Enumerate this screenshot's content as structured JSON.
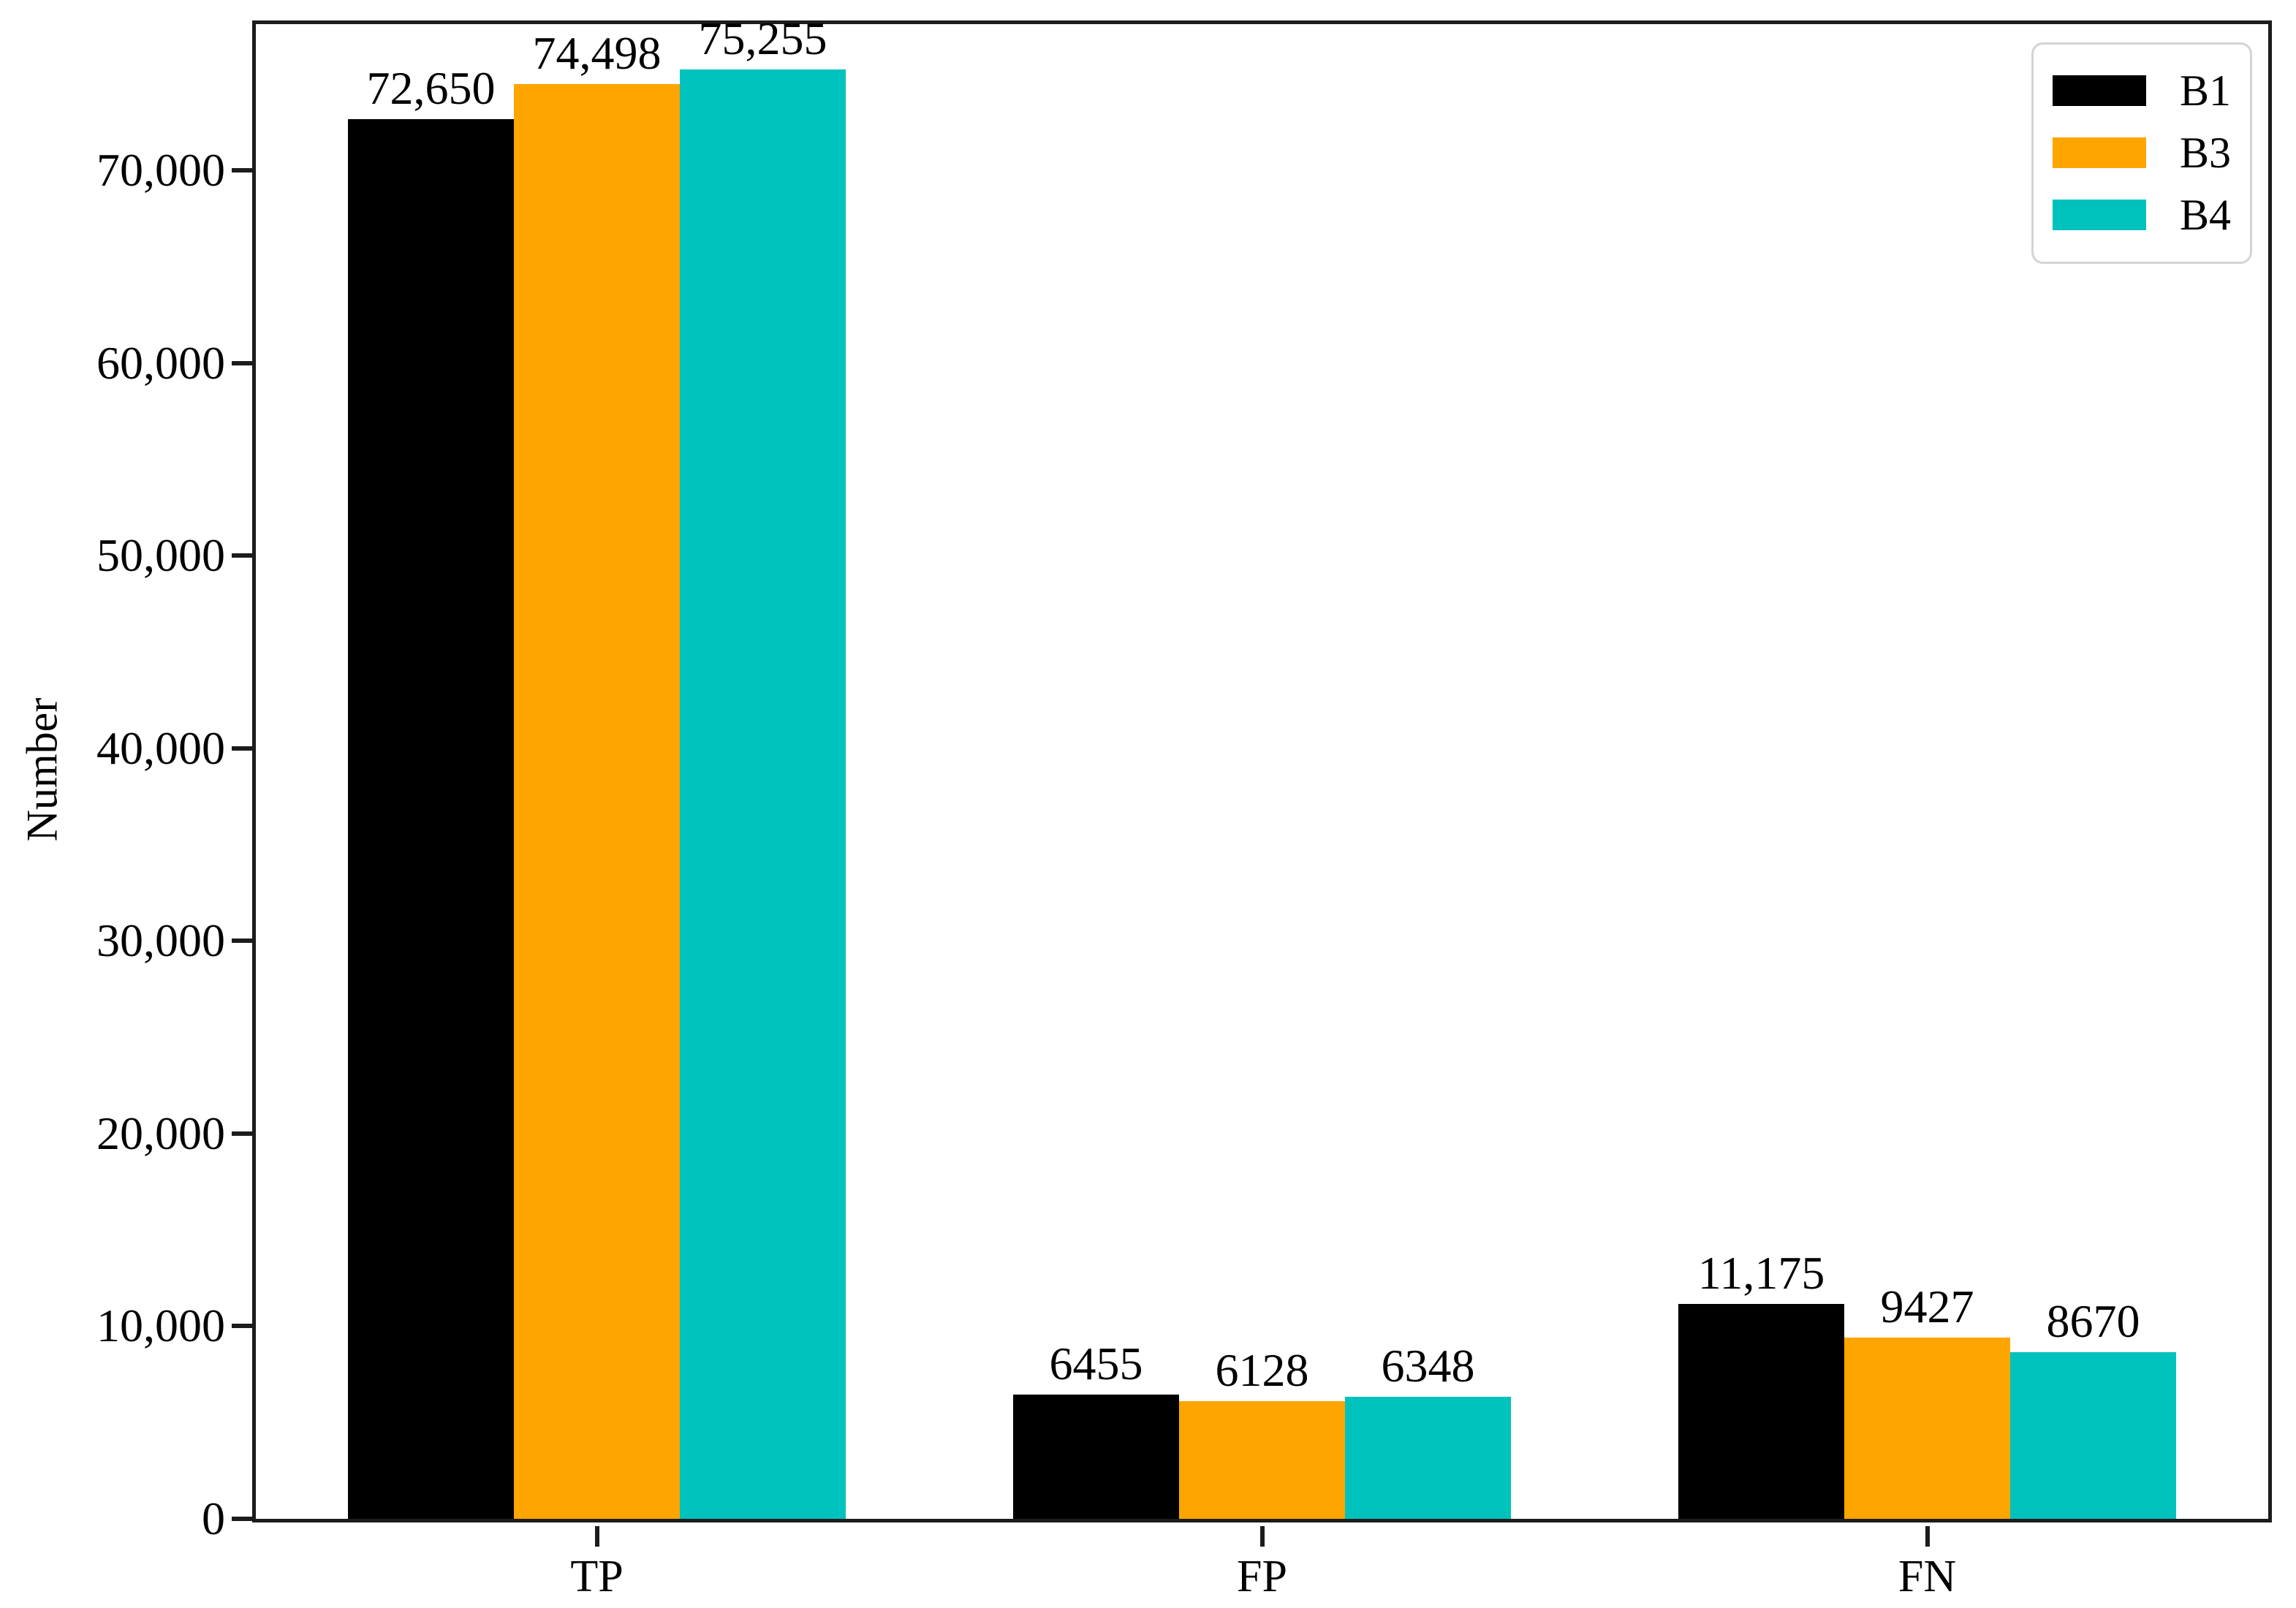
{
  "chart_data": {
    "type": "bar",
    "title": "",
    "xlabel": "",
    "ylabel": "Number",
    "categories": [
      "TP",
      "FP",
      "FN"
    ],
    "series": [
      {
        "name": "B1",
        "color": "#000000",
        "values": [
          72650,
          6455,
          11175
        ],
        "value_labels": [
          "72,650",
          "6455",
          "11,175"
        ]
      },
      {
        "name": "B3",
        "color": "#FFA500",
        "values": [
          74498,
          6128,
          9427
        ],
        "value_labels": [
          "74,498",
          "6128",
          "9427"
        ]
      },
      {
        "name": "B4",
        "color": "#00C2BD",
        "values": [
          75255,
          6348,
          8670
        ],
        "value_labels": [
          "75,255",
          "6348",
          "8670"
        ]
      }
    ],
    "ylim": [
      0,
      77600
    ],
    "yticks": [
      0,
      10000,
      20000,
      30000,
      40000,
      50000,
      60000,
      70000
    ],
    "ytick_labels": [
      "0",
      "10,000",
      "20,000",
      "30,000",
      "40,000",
      "50,000",
      "60,000",
      "70,000"
    ],
    "grid": false,
    "legend": {
      "position": "upper-right",
      "entries": [
        "B1",
        "B3",
        "B4"
      ]
    },
    "axis_color": "#1c1c1c",
    "text_color": "#000000",
    "background": "#ffffff"
  }
}
